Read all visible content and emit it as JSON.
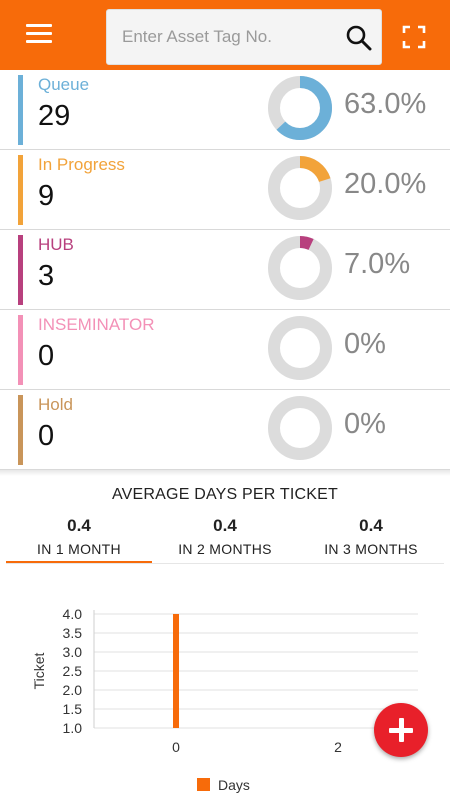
{
  "header": {
    "search_placeholder": "Enter Asset Tag No.",
    "search_value": "",
    "icons": [
      "menu-icon",
      "search-icon",
      "scan-icon"
    ],
    "brand_color": "#f76b0a"
  },
  "statuses": [
    {
      "label": "Queue",
      "count": "29",
      "percent_text": "63.0%",
      "fraction": 0.63,
      "color": "#6cb0d8"
    },
    {
      "label": "In Progress",
      "count": "9",
      "percent_text": "20.0%",
      "fraction": 0.2,
      "color": "#f2a33a"
    },
    {
      "label": "HUB",
      "count": "3",
      "percent_text": "7.0%",
      "fraction": 0.07,
      "color": "#b8407e"
    },
    {
      "label": "INSEMINATOR",
      "count": "0",
      "percent_text": "0%",
      "fraction": 0.0,
      "color": "#f391b7"
    },
    {
      "label": "Hold",
      "count": "0",
      "percent_text": "0%",
      "fraction": 0.0,
      "color": "#c9955a"
    }
  ],
  "average": {
    "title": "AVERAGE DAYS PER TICKET",
    "tabs": [
      {
        "value": "0.4",
        "label": "IN 1 MONTH",
        "selected": true
      },
      {
        "value": "0.4",
        "label": "IN 2 MONTHS",
        "selected": false
      },
      {
        "value": "0.4",
        "label": "IN 3 MONTHS",
        "selected": false
      }
    ]
  },
  "chart_data": {
    "type": "bar",
    "ylabel": "Ticket",
    "xlabel": "",
    "ylim": [
      1.0,
      4.0
    ],
    "yticks": [
      "1.0",
      "1.5",
      "2.0",
      "2.5",
      "3.0",
      "3.5",
      "4.0"
    ],
    "xticks": [
      "0",
      "2"
    ],
    "grid": true,
    "legend_position": "bottom",
    "series": [
      {
        "name": "Days",
        "color": "#f76b0a",
        "points": [
          {
            "x": 0,
            "y": 4.0
          }
        ]
      }
    ]
  },
  "fab": {
    "icon": "plus-icon",
    "color": "#e8202a"
  }
}
